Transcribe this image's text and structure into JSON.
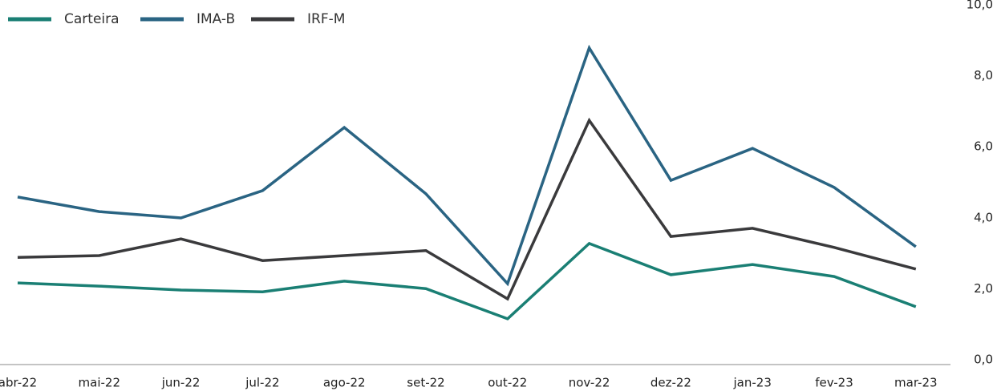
{
  "chart_data": {
    "type": "line",
    "categories": [
      "abr-22",
      "mai-22",
      "jun-22",
      "jul-22",
      "ago-22",
      "set-22",
      "out-22",
      "nov-22",
      "dez-22",
      "jan-23",
      "fev-23",
      "mar-23"
    ],
    "series": [
      {
        "name": "Carteira",
        "color": "#1a7f74",
        "values": [
          2.3,
          2.21,
          2.1,
          2.05,
          2.35,
          2.14,
          1.29,
          3.41,
          2.53,
          2.82,
          2.48,
          1.63
        ]
      },
      {
        "name": "IMA-B",
        "color": "#2a6483",
        "values": [
          4.72,
          4.31,
          4.13,
          4.9,
          6.68,
          4.81,
          2.28,
          8.92,
          5.19,
          6.09,
          4.99,
          3.32
        ]
      },
      {
        "name": "IRF-M",
        "color": "#3a3a3c",
        "values": [
          3.02,
          3.07,
          3.54,
          2.93,
          3.07,
          3.21,
          1.85,
          6.88,
          3.61,
          3.84,
          3.3,
          2.69
        ]
      }
    ],
    "ylim": [
      0,
      10
    ],
    "yticks": [
      {
        "value": 0,
        "label": "0,0"
      },
      {
        "value": 2,
        "label": "2,0"
      },
      {
        "value": 4,
        "label": "4,0"
      },
      {
        "value": 6,
        "label": "6,0"
      },
      {
        "value": 8,
        "label": "8,0"
      },
      {
        "value": 10,
        "label": "10,0"
      }
    ],
    "legend": "top-left",
    "grid": false
  }
}
